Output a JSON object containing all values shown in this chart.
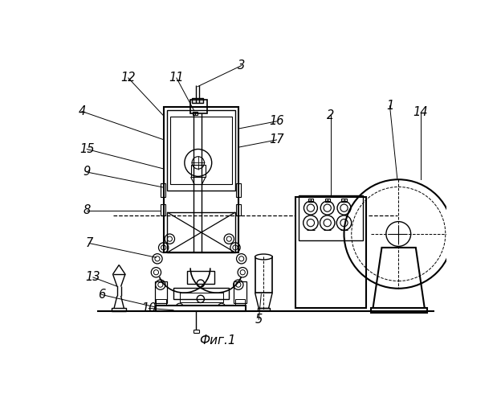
{
  "bg_color": "#ffffff",
  "line_color": "#000000",
  "fig_caption": "Фиг.1"
}
